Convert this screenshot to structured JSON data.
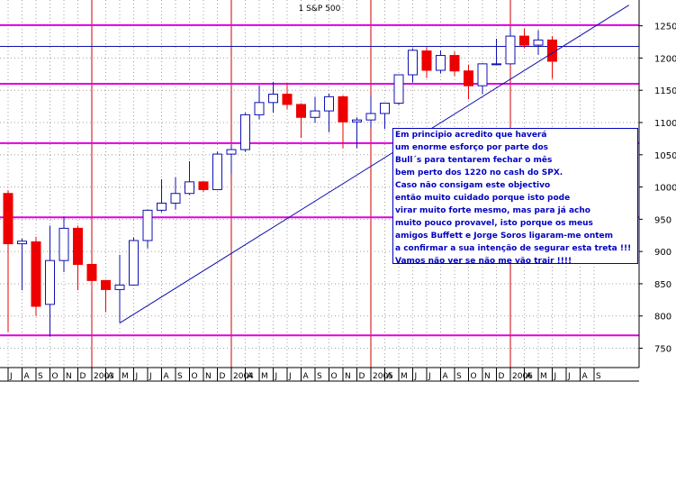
{
  "chart_data": {
    "type": "candlestick",
    "title": "1 S&P 500",
    "ylim": [
      720,
      1290
    ],
    "y_ticks": [
      750,
      800,
      850,
      900,
      950,
      1000,
      1050,
      1100,
      1150,
      1200,
      1250
    ],
    "x_tick_labels": [
      "J",
      "A",
      "S",
      "O",
      "N",
      "D",
      "2003",
      "A",
      "M",
      "J",
      "J",
      "A",
      "S",
      "O",
      "N",
      "D",
      "2004",
      "A",
      "M",
      "J",
      "J",
      "A",
      "S",
      "O",
      "N",
      "D",
      "2005",
      "A",
      "M",
      "J",
      "J",
      "A",
      "S",
      "O",
      "N",
      "D",
      "2006",
      "A",
      "M",
      "J",
      "J",
      "A",
      "S"
    ],
    "candles": [
      {
        "o": 990,
        "h": 995,
        "l": 775,
        "c": 912
      },
      {
        "o": 912,
        "h": 920,
        "l": 840,
        "c": 916
      },
      {
        "o": 915,
        "h": 923,
        "l": 800,
        "c": 815
      },
      {
        "o": 818,
        "h": 940,
        "l": 768,
        "c": 886
      },
      {
        "o": 886,
        "h": 954,
        "l": 868,
        "c": 936
      },
      {
        "o": 936,
        "h": 940,
        "l": 840,
        "c": 880
      },
      {
        "o": 880,
        "h": 884,
        "l": 838,
        "c": 855
      },
      {
        "o": 855,
        "h": 856,
        "l": 806,
        "c": 841
      },
      {
        "o": 841,
        "h": 895,
        "l": 789,
        "c": 848
      },
      {
        "o": 848,
        "h": 922,
        "l": 847,
        "c": 917
      },
      {
        "o": 917,
        "h": 965,
        "l": 905,
        "c": 964
      },
      {
        "o": 964,
        "h": 1012,
        "l": 961,
        "c": 975
      },
      {
        "o": 975,
        "h": 1015,
        "l": 965,
        "c": 990
      },
      {
        "o": 990,
        "h": 1040,
        "l": 988,
        "c": 1008
      },
      {
        "o": 1008,
        "h": 1008,
        "l": 992,
        "c": 996
      },
      {
        "o": 996,
        "h": 1055,
        "l": 995,
        "c": 1051
      },
      {
        "o": 1051,
        "h": 1065,
        "l": 1020,
        "c": 1058
      },
      {
        "o": 1058,
        "h": 1115,
        "l": 1055,
        "c": 1112
      },
      {
        "o": 1112,
        "h": 1158,
        "l": 1105,
        "c": 1131
      },
      {
        "o": 1131,
        "h": 1163,
        "l": 1115,
        "c": 1144
      },
      {
        "o": 1144,
        "h": 1162,
        "l": 1120,
        "c": 1128
      },
      {
        "o": 1128,
        "h": 1130,
        "l": 1076,
        "c": 1108
      },
      {
        "o": 1108,
        "h": 1140,
        "l": 1100,
        "c": 1118
      },
      {
        "o": 1118,
        "h": 1145,
        "l": 1085,
        "c": 1140
      },
      {
        "o": 1140,
        "h": 1142,
        "l": 1060,
        "c": 1101
      },
      {
        "o": 1101,
        "h": 1108,
        "l": 1060,
        "c": 1104
      },
      {
        "o": 1104,
        "h": 1141,
        "l": 1092,
        "c": 1114
      },
      {
        "o": 1114,
        "h": 1130,
        "l": 1090,
        "c": 1130
      },
      {
        "o": 1130,
        "h": 1173,
        "l": 1127,
        "c": 1174
      },
      {
        "o": 1174,
        "h": 1215,
        "l": 1162,
        "c": 1212
      },
      {
        "o": 1211,
        "h": 1217,
        "l": 1169,
        "c": 1181
      },
      {
        "o": 1181,
        "h": 1212,
        "l": 1176,
        "c": 1204
      },
      {
        "o": 1204,
        "h": 1210,
        "l": 1172,
        "c": 1180
      },
      {
        "o": 1180,
        "h": 1190,
        "l": 1136,
        "c": 1157
      },
      {
        "o": 1157,
        "h": 1192,
        "l": 1144,
        "c": 1191
      },
      {
        "o": 1191,
        "h": 1230,
        "l": 1190,
        "c": 1191
      },
      {
        "o": 1191,
        "h": 1246,
        "l": 1190,
        "c": 1234
      },
      {
        "o": 1234,
        "h": 1246,
        "l": 1215,
        "c": 1220
      },
      {
        "o": 1220,
        "h": 1243,
        "l": 1205,
        "c": 1228
      },
      {
        "o": 1228,
        "h": 1234,
        "l": 1168,
        "c": 1195
      }
    ],
    "horizontal_lines": [
      {
        "value": 1251,
        "color": "#e000e0"
      },
      {
        "value": 1218,
        "color": "#1010b0"
      },
      {
        "value": 1160,
        "color": "#e000e0"
      },
      {
        "value": 1068,
        "color": "#e000e0"
      },
      {
        "value": 953,
        "color": "#e000e0"
      },
      {
        "value": 770,
        "color": "#e000e0"
      }
    ],
    "trend_line": {
      "from_index": 8,
      "from_value": 789,
      "to_index": 44.5,
      "to_value": 1282,
      "color": "#1010b0"
    },
    "colors": {
      "bull_fill": "#ffffff",
      "bull_edge": "#1010b0",
      "bear_fill": "#ee0000",
      "bear_edge": "#ee0000",
      "grid": "#a0a0a0",
      "year_line": "#cc0000"
    },
    "annotation": [
      "Em principio acredito que haverá",
      "um enorme esforço por parte dos",
      "Bull´s para tentarem fechar o mês",
      "bem perto dos 1220 no cash do SPX.",
      "Caso não consigam este objectivo",
      "então muito cuidado porque isto pode",
      "virar muito forte mesmo, mas para já acho",
      "muito pouco provavel, isto porque os meus",
      "amigos Buffett e Jorge Soros ligaram-me ontem",
      "a confirmar a sua intenção de segurar esta treta !!!",
      "Vamos não ver se não me vão trair !!!!"
    ]
  }
}
